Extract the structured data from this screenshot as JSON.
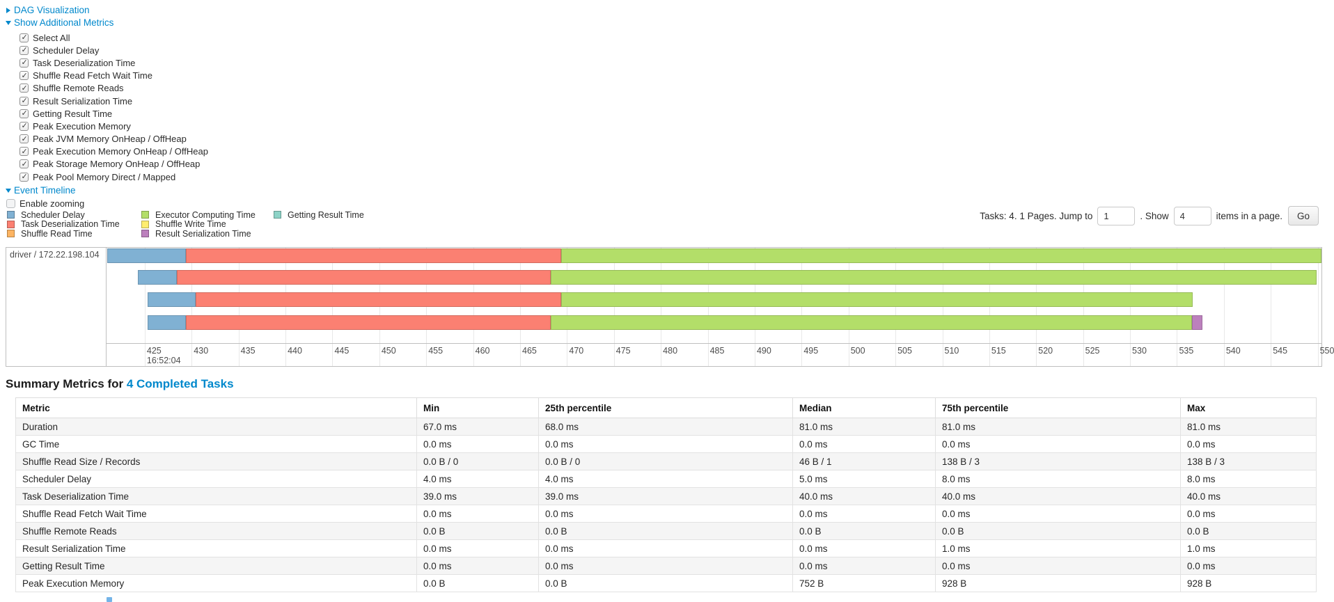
{
  "panel": {
    "dag_link": "DAG Visualization",
    "metrics_link": "Show Additional Metrics",
    "timeline_link": "Event Timeline",
    "enable_zooming_label": "Enable zooming",
    "checkboxes": [
      "Select All",
      "Scheduler Delay",
      "Task Deserialization Time",
      "Shuffle Read Fetch Wait Time",
      "Shuffle Remote Reads",
      "Result Serialization Time",
      "Getting Result Time",
      "Peak Execution Memory",
      "Peak JVM Memory OnHeap / OffHeap",
      "Peak Execution Memory OnHeap / OffHeap",
      "Peak Storage Memory OnHeap / OffHeap",
      "Peak Pool Memory Direct / Mapped"
    ]
  },
  "legend": {
    "columns": [
      [
        {
          "label": "Scheduler Delay",
          "color": "#80B1D3"
        },
        {
          "label": "Task Deserialization Time",
          "color": "#FB8072"
        },
        {
          "label": "Shuffle Read Time",
          "color": "#FDB462"
        }
      ],
      [
        {
          "label": "Executor Computing Time",
          "color": "#B3DE69"
        },
        {
          "label": "Shuffle Write Time",
          "color": "#FFED6F"
        },
        {
          "label": "Result Serialization Time",
          "color": "#BC80BD"
        }
      ],
      [
        {
          "label": "Getting Result Time",
          "color": "#8DD3C7"
        }
      ]
    ]
  },
  "pagination": {
    "prefix": "Tasks: 4. 1 Pages. Jump to",
    "jump_value": "1",
    "mid": ". Show",
    "show_value": "4",
    "suffix": "items in a page.",
    "go": "Go"
  },
  "chart_data": {
    "type": "bar",
    "subtype": "horizontal-stacked-task-timeline",
    "group_label": "driver / 172.22.198.104",
    "x_start_time": "16:52:04",
    "xlim": [
      421.0,
      550.4
    ],
    "ticks": [
      425,
      430,
      435,
      440,
      445,
      450,
      455,
      460,
      465,
      470,
      475,
      480,
      485,
      490,
      495,
      500,
      505,
      510,
      515,
      520,
      525,
      530,
      535,
      540,
      545,
      550
    ],
    "time_label_tick": 425,
    "series_colors": {
      "scheduler_delay": "#80B1D3",
      "task_deserialization": "#FB8072",
      "shuffle_read": "#FDB462",
      "executor_computing": "#B3DE69",
      "shuffle_write": "#FFED6F",
      "getting_result": "#8DD3C7",
      "result_serialization": "#BC80BD"
    },
    "tasks": [
      {
        "segments": [
          {
            "type": "scheduler_delay",
            "start": 421.0,
            "end": 429.4
          },
          {
            "type": "task_deserialization",
            "start": 429.4,
            "end": 469.4
          },
          {
            "type": "executor_computing",
            "start": 469.4,
            "end": 550.4
          }
        ]
      },
      {
        "segments": [
          {
            "type": "scheduler_delay",
            "start": 424.3,
            "end": 428.4
          },
          {
            "type": "task_deserialization",
            "start": 428.4,
            "end": 468.3
          },
          {
            "type": "executor_computing",
            "start": 468.3,
            "end": 549.9
          }
        ]
      },
      {
        "segments": [
          {
            "type": "scheduler_delay",
            "start": 425.3,
            "end": 430.4
          },
          {
            "type": "task_deserialization",
            "start": 430.4,
            "end": 469.4
          },
          {
            "type": "executor_computing",
            "start": 469.4,
            "end": 536.7
          }
        ]
      },
      {
        "segments": [
          {
            "type": "scheduler_delay",
            "start": 425.3,
            "end": 429.4
          },
          {
            "type": "task_deserialization",
            "start": 429.4,
            "end": 468.3
          },
          {
            "type": "executor_computing",
            "start": 468.3,
            "end": 536.6
          },
          {
            "type": "result_serialization",
            "start": 536.6,
            "end": 537.7
          }
        ]
      }
    ]
  },
  "summary": {
    "title_prefix": "Summary Metrics for ",
    "title_link": "4 Completed Tasks",
    "table": {
      "headers": [
        "Metric",
        "Min",
        "25th percentile",
        "Median",
        "75th percentile",
        "Max"
      ],
      "rows": [
        [
          "Duration",
          "67.0 ms",
          "68.0 ms",
          "81.0 ms",
          "81.0 ms",
          "81.0 ms"
        ],
        [
          "GC Time",
          "0.0 ms",
          "0.0 ms",
          "0.0 ms",
          "0.0 ms",
          "0.0 ms"
        ],
        [
          "Shuffle Read Size / Records",
          "0.0 B / 0",
          "0.0 B / 0",
          "46 B / 1",
          "138 B / 3",
          "138 B / 3"
        ],
        [
          "Scheduler Delay",
          "4.0 ms",
          "4.0 ms",
          "5.0 ms",
          "8.0 ms",
          "8.0 ms"
        ],
        [
          "Task Deserialization Time",
          "39.0 ms",
          "39.0 ms",
          "40.0 ms",
          "40.0 ms",
          "40.0 ms"
        ],
        [
          "Shuffle Read Fetch Wait Time",
          "0.0 ms",
          "0.0 ms",
          "0.0 ms",
          "0.0 ms",
          "0.0 ms"
        ],
        [
          "Shuffle Remote Reads",
          "0.0 B",
          "0.0 B",
          "0.0 B",
          "0.0 B",
          "0.0 B"
        ],
        [
          "Result Serialization Time",
          "0.0 ms",
          "0.0 ms",
          "0.0 ms",
          "1.0 ms",
          "1.0 ms"
        ],
        [
          "Getting Result Time",
          "0.0 ms",
          "0.0 ms",
          "0.0 ms",
          "0.0 ms",
          "0.0 ms"
        ],
        [
          "Peak Execution Memory",
          "0.0 B",
          "0.0 B",
          "752 B",
          "928 B",
          "928 B"
        ]
      ]
    }
  },
  "colors": {
    "link": "#0088cc",
    "chart_border": "#bfbfbf",
    "gridline": "#e8e8e8",
    "row_stripe": "#f5f5f5"
  }
}
